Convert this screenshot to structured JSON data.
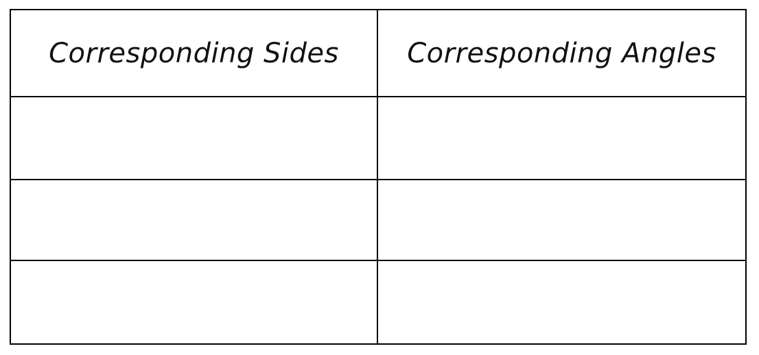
{
  "table": {
    "headers": [
      "Corresponding Sides",
      "Corresponding Angles"
    ],
    "rows": [
      [
        "",
        ""
      ],
      [
        "",
        ""
      ],
      [
        "",
        ""
      ]
    ]
  }
}
